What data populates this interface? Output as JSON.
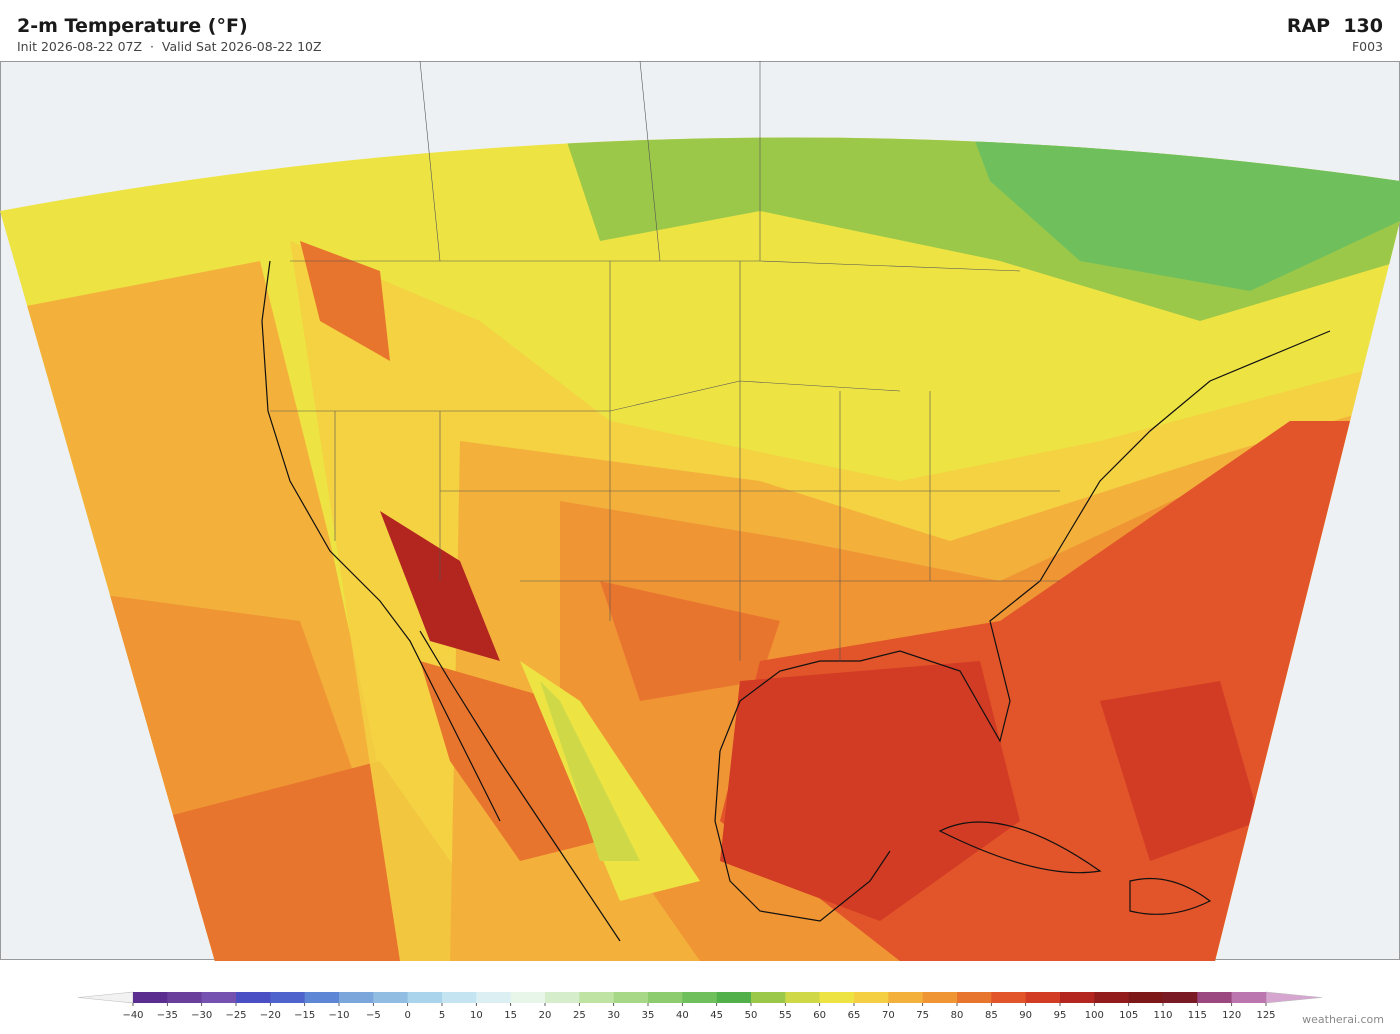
{
  "header": {
    "title": "2-m Temperature  (°F)",
    "subtitle": "Init 2026-08-22 07Z  ·  Valid Sat 2026-08-22 10Z",
    "model": "RAP  130",
    "forecast_hour": "F003"
  },
  "colorbar": {
    "ticks": [
      {
        "value": -40,
        "label": "−40"
      },
      {
        "value": -35,
        "label": "−35"
      },
      {
        "value": -30,
        "label": "−30"
      },
      {
        "value": -25,
        "label": "−25"
      },
      {
        "value": -20,
        "label": "−20"
      },
      {
        "value": -15,
        "label": "−15"
      },
      {
        "value": -10,
        "label": "−10"
      },
      {
        "value": -5,
        "label": "−5"
      },
      0,
      5,
      10,
      15,
      20,
      25,
      30,
      35,
      40,
      45,
      50,
      55,
      60,
      65,
      70,
      75,
      80,
      85,
      90,
      95,
      100,
      105,
      110,
      115,
      120,
      125
    ],
    "colors": [
      "#5b2d8e",
      "#6a3f9c",
      "#7552b0",
      "#4a4fc4",
      "#4f63cc",
      "#5d86d4",
      "#7aa6dc",
      "#92bde2",
      "#a9d4ec",
      "#c5e4f2",
      "#dcf0f4",
      "#e8f6ea",
      "#d6edcc",
      "#bfe3a3",
      "#a6d888",
      "#8ccc6e",
      "#6fc05c",
      "#52b04a",
      "#9cc84a",
      "#cfd948",
      "#ede444",
      "#f4cf43",
      "#f3b13c",
      "#ef9534",
      "#e8752e",
      "#e2542a",
      "#d23b24",
      "#b3261f",
      "#921c1c",
      "#7d1818",
      "#7a1a24",
      "#9c4880",
      "#bb76b0"
    ],
    "under_color": "#f2f2f2",
    "over_color": "#d6a6d0"
  },
  "footer": "weatherai.com"
}
